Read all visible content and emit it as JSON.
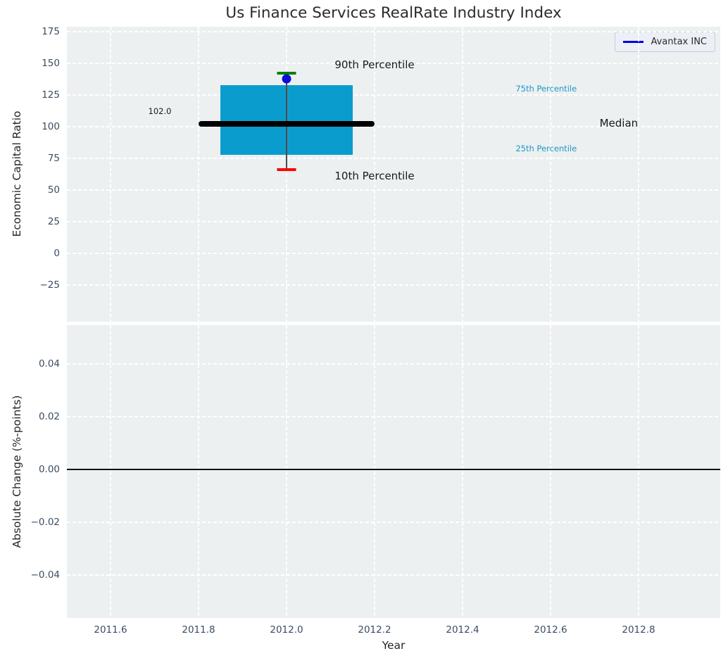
{
  "figure": {
    "title": "Us Finance Services RealRate Industry Index",
    "background": "#ffffff",
    "axes_background": "#ecf0f1",
    "grid_color": "#ffffff",
    "tick_color": "#3b4c63"
  },
  "chart_data": [
    {
      "type": "box",
      "title": "Us Finance Services RealRate Industry Index",
      "ylabel": "Economic Capital Ratio",
      "xlabel": "",
      "grid": true,
      "legend_position": "upper right",
      "xlim": [
        2011.5008,
        2012.9856
      ],
      "ylim": [
        -53.9,
        178.9
      ],
      "yticks": [
        {
          "v": 175,
          "label": "175"
        },
        {
          "v": 150,
          "label": "150"
        },
        {
          "v": 125,
          "label": "125"
        },
        {
          "v": 100,
          "label": "100"
        },
        {
          "v": 75,
          "label": "75"
        },
        {
          "v": 50,
          "label": "50"
        },
        {
          "v": 25,
          "label": "25"
        },
        {
          "v": 0,
          "label": "0"
        },
        {
          "v": -25,
          "label": "−25"
        }
      ],
      "xticks": [
        {
          "v": 2011.6,
          "label": ""
        },
        {
          "v": 2011.8,
          "label": ""
        },
        {
          "v": 2012.0,
          "label": ""
        },
        {
          "v": 2012.2,
          "label": ""
        },
        {
          "v": 2012.4,
          "label": ""
        },
        {
          "v": 2012.6,
          "label": ""
        },
        {
          "v": 2012.8,
          "label": ""
        }
      ],
      "box": {
        "x": 2012.0,
        "box_left": 2011.85,
        "box_right": 2012.15,
        "p10": 66,
        "q1": 78,
        "median": 102,
        "q3": 133,
        "p90": 142.5,
        "median_label": "102.0",
        "median_line_x0": 2011.8,
        "median_line_x1": 2012.2,
        "box_color": "#0b9cce",
        "median_color": "#000000",
        "whisker_color": "#4d4d4d",
        "p90_cap_color": "#008000",
        "p10_cap_color": "#ff0000"
      },
      "company_point": {
        "name": "Avantax INC",
        "x": 2012.0,
        "y": 138,
        "color": "#0d0dda"
      },
      "legend": {
        "label": "Avantax INC",
        "line_color": "#0000dd"
      },
      "annotations": [
        {
          "text": "90th Percentile",
          "x": 2012.2,
          "y": 149,
          "color": "#1a1a1a",
          "size": "lg"
        },
        {
          "text": "10th Percentile",
          "x": 2012.2,
          "y": 61,
          "color": "#1a1a1a",
          "size": "lg"
        },
        {
          "text": "75th Percentile",
          "x": 2012.59,
          "y": 130,
          "color": "#1e97c8",
          "size": "sm"
        },
        {
          "text": "25th Percentile",
          "x": 2012.59,
          "y": 83,
          "color": "#1e97c8",
          "size": "sm"
        },
        {
          "text": "Median",
          "x": 2012.755,
          "y": 103,
          "color": "#1a1a1a",
          "size": "lg"
        },
        {
          "text": "102.0",
          "x": 2011.712,
          "y": 112,
          "color": "#1a1a1a",
          "size": "sm"
        }
      ]
    },
    {
      "type": "line",
      "ylabel": "Absolute Change (%-points)",
      "xlabel": "Year",
      "grid": true,
      "xlim": [
        2011.5008,
        2012.9856
      ],
      "ylim": [
        -0.0563,
        0.0547
      ],
      "zero_line": {
        "y": 0.0,
        "color": "#111111"
      },
      "series": [],
      "yticks": [
        {
          "v": 0.04,
          "label": "0.04"
        },
        {
          "v": 0.02,
          "label": "0.02"
        },
        {
          "v": 0.0,
          "label": "0.00"
        },
        {
          "v": -0.02,
          "label": "−0.02"
        },
        {
          "v": -0.04,
          "label": "−0.04"
        }
      ],
      "xticks": [
        {
          "v": 2011.6,
          "label": "2011.6"
        },
        {
          "v": 2011.8,
          "label": "2011.8"
        },
        {
          "v": 2012.0,
          "label": "2012.0"
        },
        {
          "v": 2012.2,
          "label": "2012.2"
        },
        {
          "v": 2012.4,
          "label": "2012.4"
        },
        {
          "v": 2012.6,
          "label": "2012.6"
        },
        {
          "v": 2012.8,
          "label": "2012.8"
        }
      ]
    }
  ]
}
